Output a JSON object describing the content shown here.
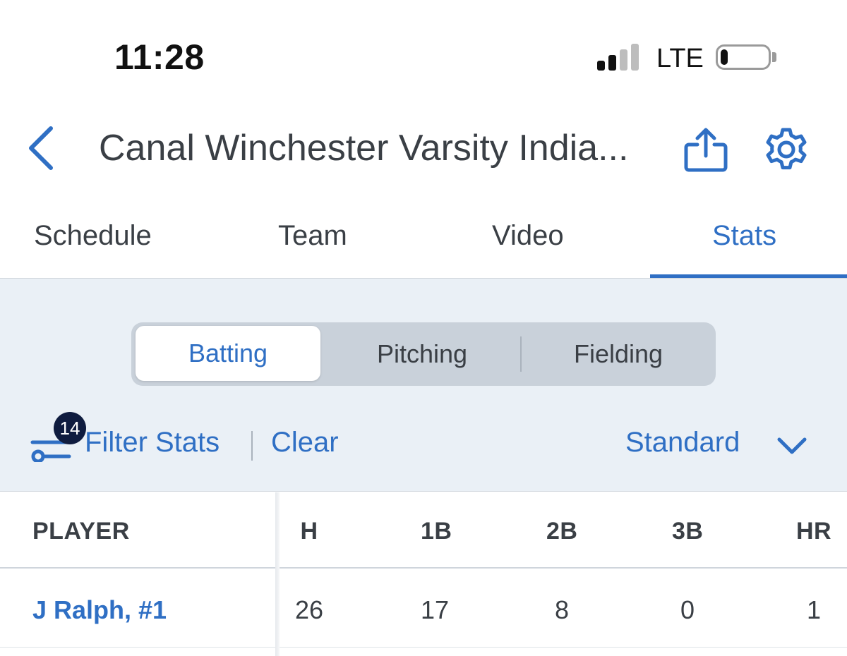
{
  "status_bar": {
    "time": "11:28",
    "carrier": "LTE",
    "signal_bars_active": 2,
    "signal_bars_total": 4,
    "battery_level": 0.12
  },
  "header": {
    "title": "Canal Winchester Varsity India...",
    "back_icon": "chevron-left-icon",
    "share_icon": "share-icon",
    "settings_icon": "gear-icon"
  },
  "tabs": [
    {
      "label": "Schedule",
      "active": false
    },
    {
      "label": "Team",
      "active": false
    },
    {
      "label": "Video",
      "active": false
    },
    {
      "label": "Stats",
      "active": true
    }
  ],
  "stats_segments": [
    {
      "label": "Batting",
      "active": true
    },
    {
      "label": "Pitching",
      "active": false
    },
    {
      "label": "Fielding",
      "active": false
    }
  ],
  "filter": {
    "badge_count": "14",
    "label": "Filter Stats",
    "clear_label": "Clear",
    "view_label": "Standard"
  },
  "table": {
    "columns": [
      "PLAYER",
      "H",
      "1B",
      "2B",
      "3B",
      "HR"
    ],
    "rows": [
      {
        "player": "J Ralph, #1",
        "h": "26",
        "1b": "17",
        "2b": "8",
        "3b": "0",
        "hr": "1"
      }
    ]
  },
  "colors": {
    "accent": "#2f6fc4",
    "panel_bg": "#eaf0f6",
    "badge_bg": "#0f1c3f",
    "text": "#3a3f45"
  }
}
